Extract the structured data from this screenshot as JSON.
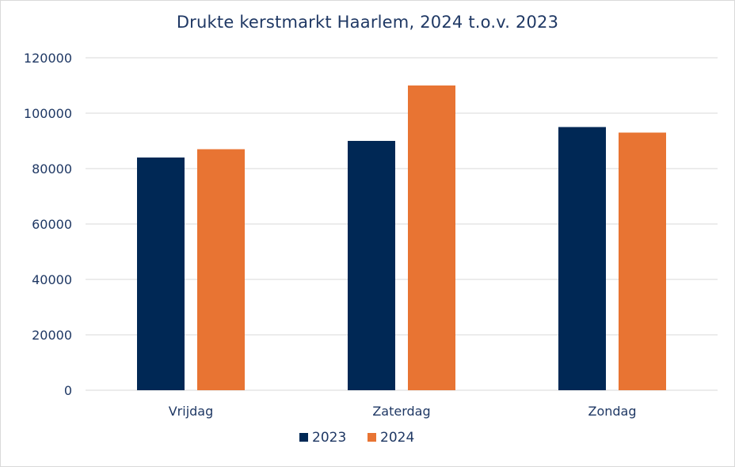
{
  "chart_data": {
    "type": "bar",
    "title": "Drukte kerstmarkt Haarlem, 2024 t.o.v. 2023",
    "categories": [
      "Vrijdag",
      "Zaterdag",
      "Zondag"
    ],
    "series": [
      {
        "name": "2023",
        "values": [
          84000,
          90000,
          95000
        ],
        "color": "#002855"
      },
      {
        "name": "2024",
        "values": [
          87000,
          110000,
          93000
        ],
        "color": "#e87433"
      }
    ],
    "ylim": [
      0,
      120000
    ],
    "yticks": [
      "0",
      "20000",
      "40000",
      "60000",
      "80000",
      "100000",
      "120000"
    ],
    "xlabel": "",
    "ylabel": "",
    "grid": true,
    "legend": "bottom-center",
    "colors": {
      "text": "#1f3864",
      "gridline": "#d9d9d9"
    }
  }
}
